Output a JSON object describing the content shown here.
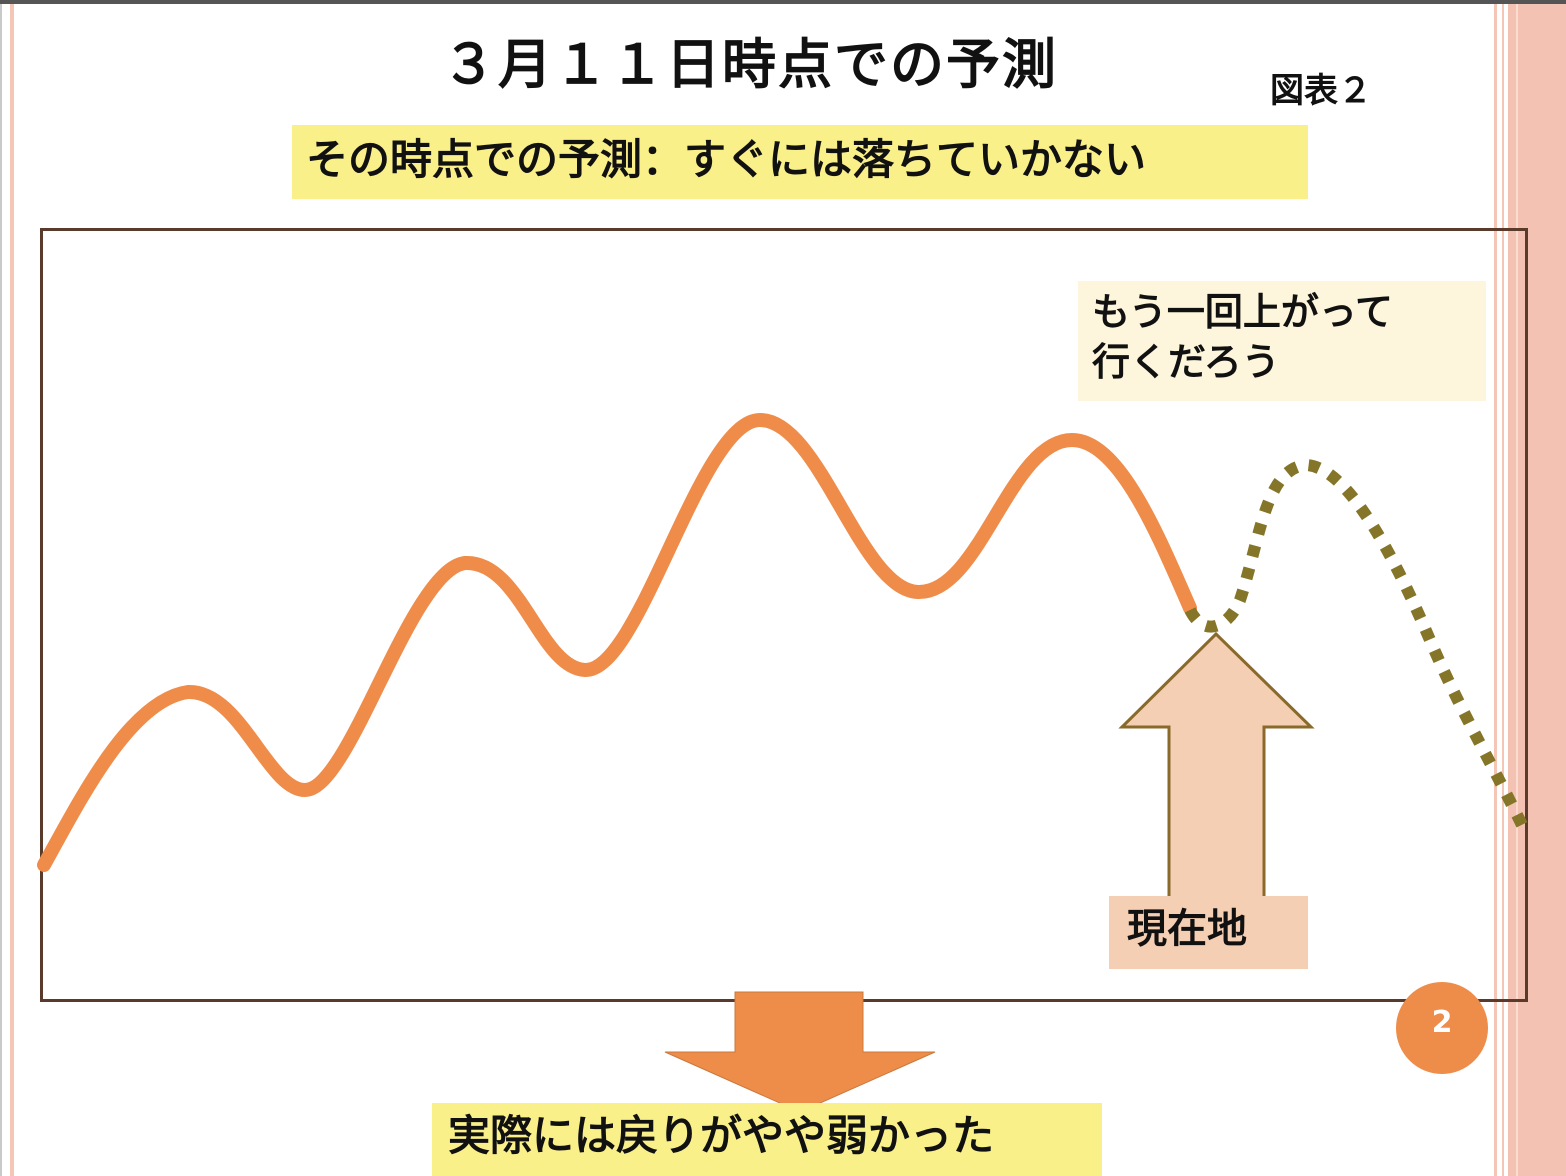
{
  "title": "３月１１日時点での予測",
  "figure_label": "図表２",
  "subtitle": "その時点での予測：すぐには落ちていかない",
  "prediction_note": {
    "line1": "もう一回上がって",
    "line2": "行くだろう"
  },
  "current_position_label": "現在地",
  "page_number": "2",
  "result_text": "実際には戻りがやや弱かった",
  "colors": {
    "actual_line": "#ef8c4a",
    "forecast_line": "#857528",
    "subtitle_bg": "#faf08a",
    "note_bg": "#fdf6dc",
    "current_bg": "#f5cfb4",
    "up_arrow_fill": "#f5cfb4",
    "up_arrow_stroke": "#8a6a2a",
    "down_arrow_fill": "#ee8c4a",
    "frame": "#5a3a2a"
  }
}
